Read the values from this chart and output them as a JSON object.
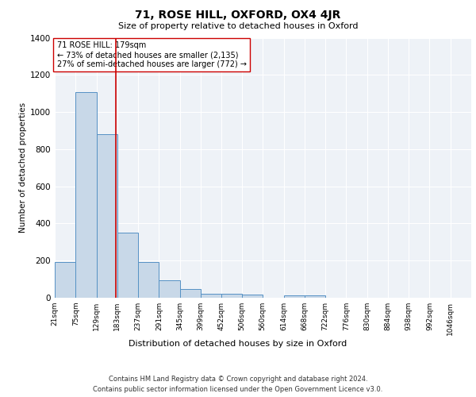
{
  "title": "71, ROSE HILL, OXFORD, OX4 4JR",
  "subtitle": "Size of property relative to detached houses in Oxford",
  "xlabel": "Distribution of detached houses by size in Oxford",
  "ylabel": "Number of detached properties",
  "annotation_line1": "71 ROSE HILL: 179sqm",
  "annotation_line2": "← 73% of detached houses are smaller (2,135)",
  "annotation_line3": "27% of semi-detached houses are larger (772) →",
  "red_line_x": 179,
  "bar_edges": [
    21,
    75,
    129,
    183,
    237,
    291,
    345,
    399,
    452,
    506,
    560,
    614,
    668,
    722,
    776,
    830,
    884,
    938,
    992,
    1046,
    1100
  ],
  "bar_heights": [
    192,
    1108,
    880,
    352,
    192,
    96,
    48,
    20,
    20,
    16,
    0,
    12,
    12,
    0,
    0,
    0,
    0,
    0,
    0,
    0
  ],
  "bar_color": "#c8d8e8",
  "bar_edge_color": "#5591c4",
  "red_line_color": "#cc0000",
  "background_color": "#eef2f7",
  "ylim": [
    0,
    1400
  ],
  "yticks": [
    0,
    200,
    400,
    600,
    800,
    1000,
    1200,
    1400
  ],
  "footer_line1": "Contains HM Land Registry data © Crown copyright and database right 2024.",
  "footer_line2": "Contains public sector information licensed under the Open Government Licence v3.0."
}
